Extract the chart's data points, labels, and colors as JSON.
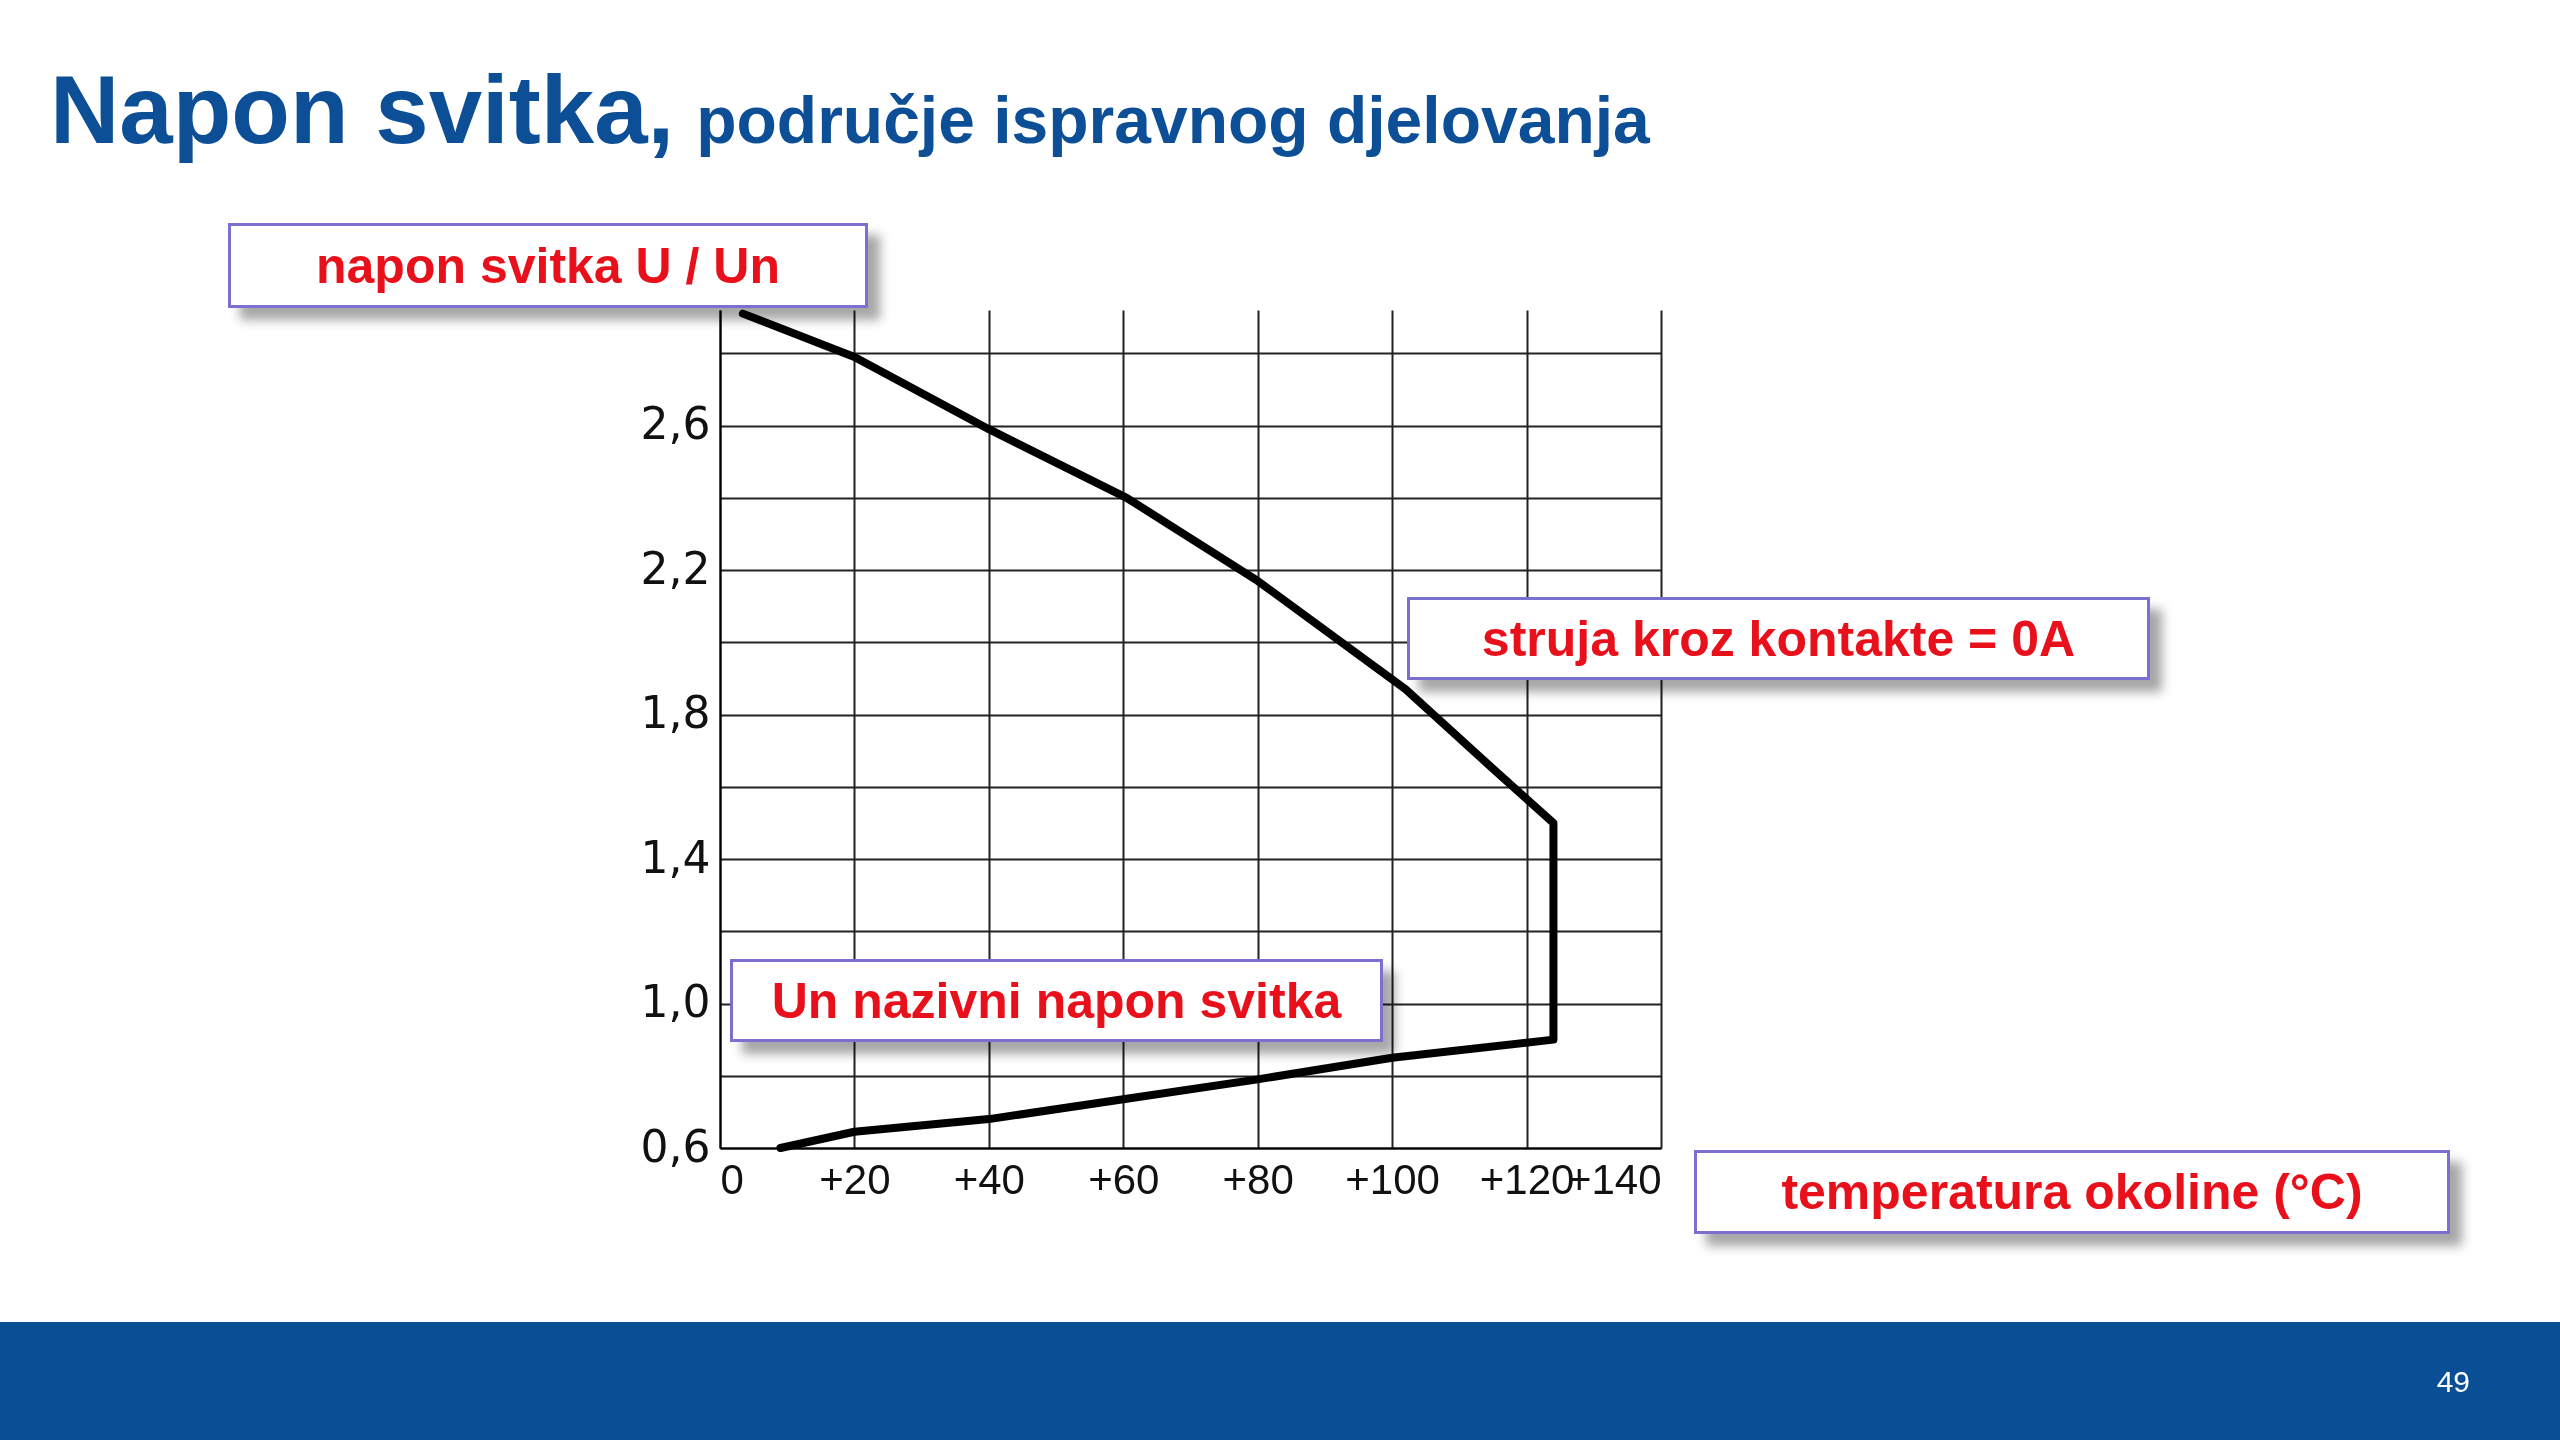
{
  "chart_data": {
    "type": "line",
    "title": "Napon svitka,",
    "subtitle": "područje ispravnog djelovanja",
    "xlabel": "temperatura okoline (°C)",
    "ylabel": "napon svitka U / Un",
    "annotations": [
      "struja kroz kontakte = 0A",
      "Un nazivni napon svitka",
      "49"
    ],
    "series": [
      {
        "color": "#000000",
        "x": [
          9,
          20,
          40,
          60,
          80,
          100,
          124,
          124,
          115,
          102,
          80,
          60.5,
          40,
          20,
          3.4
        ],
        "values": [
          0.6,
          0.645,
          0.68,
          0.735,
          0.79,
          0.85,
          0.9,
          1.5,
          1.65,
          1.87,
          2.17,
          2.4,
          2.59,
          2.79,
          2.91
        ]
      }
    ],
    "xlim": [
      0,
      140
    ],
    "ylim": [
      0.6,
      2.92
    ],
    "xticks": [
      0,
      {
        "value": 20,
        "label": "+20"
      },
      {
        "value": 40,
        "label": "+40"
      },
      {
        "value": 60,
        "label": "+60"
      },
      {
        "value": 80,
        "label": "+80"
      },
      {
        "value": 100,
        "label": "+100"
      },
      {
        "value": 120,
        "label": "+120"
      },
      {
        "value": 140,
        "label": "+140"
      }
    ],
    "yticks": [
      {
        "value": 0.6,
        "label": "0,6"
      },
      {
        "value": 0.8,
        "label": null
      },
      {
        "value": 1.0,
        "label": "1,0"
      },
      {
        "value": 1.2,
        "label": null
      },
      {
        "value": 1.4,
        "label": "1,4"
      },
      {
        "value": 1.6,
        "label": null
      },
      {
        "value": 1.8,
        "label": "1,8"
      },
      {
        "value": 2.0,
        "label": null
      },
      {
        "value": 2.2,
        "label": "2,2"
      },
      {
        "value": 2.4,
        "label": null
      },
      {
        "value": 2.6,
        "label": "2,6"
      },
      {
        "value": 2.8,
        "label": null
      }
    ],
    "grid": true,
    "line_style": "solid",
    "marker": "none"
  }
}
